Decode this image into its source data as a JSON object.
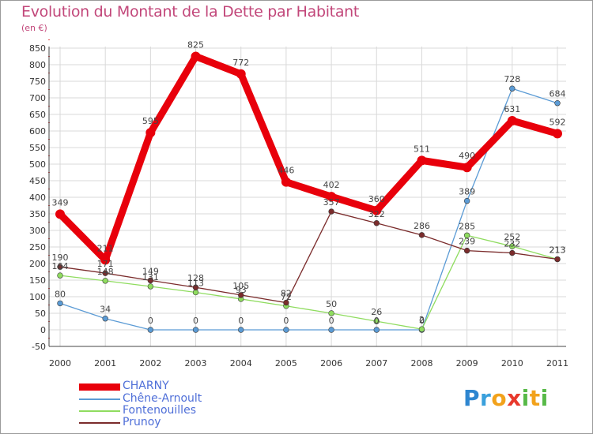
{
  "title": "Evolution du Montant de la Dette par Habitant",
  "unit": "(en €)",
  "logo": {
    "text": "Proxiti",
    "letters": [
      "P",
      "r",
      "o",
      "x",
      "i",
      "t",
      "i"
    ],
    "colors": [
      "#2e86d0",
      "#3aa0dc",
      "#f2a21b",
      "#e8392c",
      "#57b947",
      "#f2a21b",
      "#57b947"
    ]
  },
  "chart_data": {
    "type": "line",
    "title": "Evolution du Montant de la Dette par Habitant",
    "ylabel": "(en €)",
    "xlabel": "",
    "ylim": [
      -50,
      850
    ],
    "yticks": [
      -50,
      0,
      50,
      100,
      150,
      200,
      250,
      300,
      350,
      400,
      450,
      500,
      550,
      600,
      650,
      700,
      750,
      800,
      850
    ],
    "categories": [
      "2000",
      "2001",
      "2002",
      "2003",
      "2004",
      "2005",
      "2006",
      "2007",
      "2008",
      "2009",
      "2010",
      "2011"
    ],
    "grid": true,
    "legend_position": "bottom-left",
    "series": [
      {
        "name": "CHARNY",
        "color": "#e8000b",
        "emphasis": true,
        "values": [
          349,
          211,
          595,
          825,
          772,
          446,
          402,
          360,
          511,
          490,
          631,
          592
        ],
        "labels": [
          "349",
          "211",
          "595",
          "825",
          "772",
          "446",
          "402",
          "360",
          "511",
          "490",
          "631",
          "592"
        ]
      },
      {
        "name": "Chêne-Arnoult",
        "color": "#5b9bd5",
        "values": [
          80,
          34,
          0,
          0,
          0,
          0,
          0,
          0,
          0,
          389,
          728,
          684
        ],
        "labels": [
          "80",
          "34",
          "0",
          "0",
          "0",
          "0",
          "0",
          "0",
          "0",
          "389",
          "728",
          "684"
        ]
      },
      {
        "name": "Fontenouilles",
        "color": "#8fdc5f",
        "values": [
          164,
          148,
          131,
          113,
          93,
          72,
          50,
          26,
          2,
          285,
          252,
          213
        ],
        "labels": [
          "164",
          "148",
          "131",
          "113",
          "93",
          "72",
          "50",
          "26",
          "2",
          "285",
          "252",
          "213"
        ]
      },
      {
        "name": "Prunoy",
        "color": "#7b2c2c",
        "values": [
          190,
          171,
          149,
          128,
          105,
          82,
          357,
          322,
          286,
          239,
          232,
          213
        ],
        "labels": [
          "190",
          "171",
          "149",
          "128",
          "105",
          "82",
          "357",
          "322",
          "286",
          "239",
          "232",
          "213"
        ]
      }
    ]
  }
}
